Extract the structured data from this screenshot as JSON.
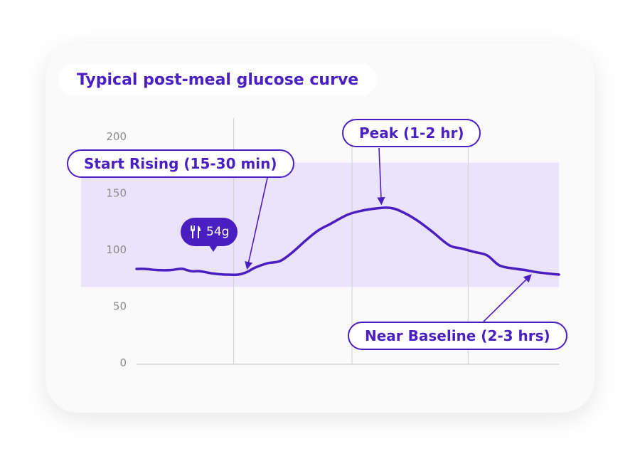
{
  "title": "Typical post-meal glucose curve",
  "colors": {
    "accent": "#4a1fc1",
    "range_band": "#ebe3fc",
    "grid": "#cfcfcf",
    "card": "#fafafa"
  },
  "meal_badge": {
    "icon": "fork-knife-icon",
    "label": "54g"
  },
  "annotations": {
    "start": "Start Rising (15-30 min)",
    "peak": "Peak (1-2 hr)",
    "baseline": "Near Baseline (2-3 hrs)"
  },
  "chart_data": {
    "type": "line",
    "title": "Typical post-meal glucose curve",
    "xlabel": "",
    "ylabel": "",
    "ylim": [
      0,
      200
    ],
    "yticks": [
      0,
      50,
      100,
      150,
      200
    ],
    "xlim": [
      0,
      10
    ],
    "grid": "vertical",
    "target_range": [
      67,
      177
    ],
    "x_gridlines": [
      2.3,
      5.1,
      7.85
    ],
    "series": [
      {
        "x": [
          0,
          0.2,
          0.5,
          0.8,
          1.0,
          1.1,
          1.3,
          1.5,
          1.8,
          2.1,
          2.4,
          2.6,
          2.8,
          3.1,
          3.4,
          3.7,
          4.0,
          4.3,
          4.6,
          5.0,
          5.4,
          5.8,
          6.0,
          6.2,
          6.6,
          7.0,
          7.4,
          7.7,
          8.0,
          8.3,
          8.6,
          9.0,
          9.2,
          9.5,
          10.0
        ],
        "y": [
          83,
          83,
          82,
          82,
          83,
          83,
          81,
          81,
          79,
          78,
          78,
          80,
          84,
          88,
          90,
          98,
          108,
          117,
          123,
          131,
          135,
          137,
          137,
          135,
          127,
          116,
          104,
          101,
          98,
          95,
          86,
          83,
          82,
          80,
          78
        ]
      }
    ],
    "annotations": [
      {
        "label": "Start Rising (15-30 min)",
        "x": 2.6,
        "y": 80
      },
      {
        "label": "Peak (1-2 hr)",
        "x": 5.8,
        "y": 137
      },
      {
        "label": "Near Baseline (2-3 hrs)",
        "x": 9.4,
        "y": 80
      }
    ],
    "meal_marker": {
      "label": "54g",
      "x": 1.8
    }
  }
}
